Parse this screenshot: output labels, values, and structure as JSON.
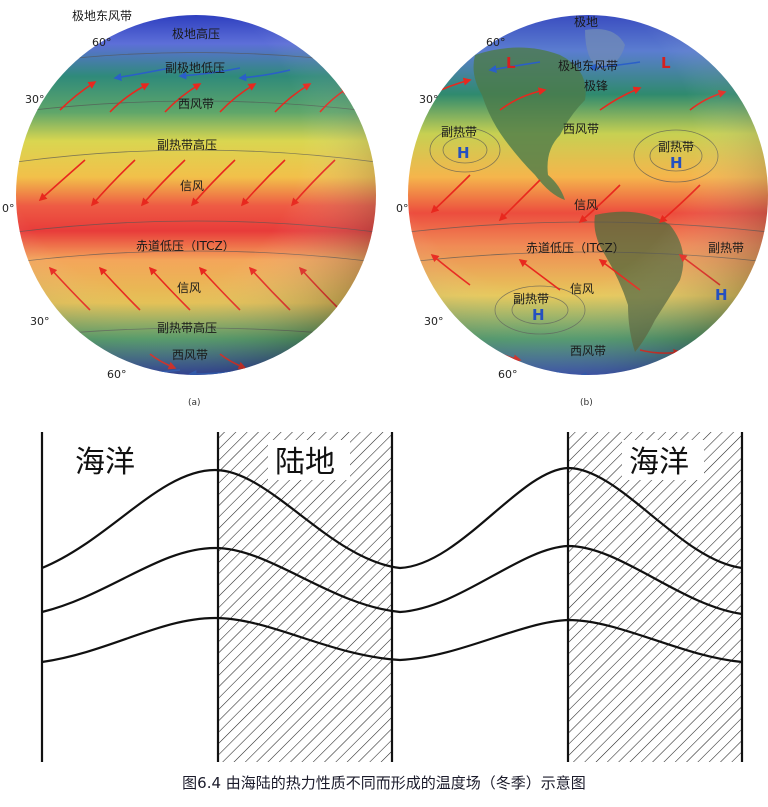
{
  "globe_a": {
    "panel_label": "(a)",
    "latitudes": {
      "lat60_n": "60°",
      "lat30_n": "30°",
      "lat0": "0°",
      "lat30_s": "30°",
      "lat60_s": "60°"
    },
    "zones": {
      "polar_easterlies": "极地东风带",
      "polar_high": "极地高压",
      "subpolar_low": "副极地低压",
      "westerlies_n": "西风带",
      "subtropical_high_n": "副热带高压",
      "trades_n": "信风",
      "itcz": "赤道低压（ITCZ）",
      "trades_s": "信风",
      "subtropical_high_s": "副热带高压",
      "westerlies_s": "西风带"
    }
  },
  "globe_b": {
    "panel_label": "(b)",
    "latitudes": {
      "lat60_n": "60°",
      "lat30_n": "30°",
      "lat0": "0°",
      "lat30_s": "30°",
      "lat60_s": "60°"
    },
    "zones": {
      "polar": "极地",
      "polar_easterlies": "极地东风带",
      "polar_front": "极锋",
      "subtropical_left": "副热带",
      "westerlies_n": "西风带",
      "subtropical_right": "副热带",
      "trades_n": "信风",
      "itcz": "赤道低压（ITCZ）",
      "subtropical_se": "副热带",
      "subtropical_sw": "副热带",
      "trades_s": "信风",
      "westerlies_s": "西风带"
    },
    "pressure_marks": {
      "low": "L",
      "high": "H"
    }
  },
  "bottom": {
    "ocean_left": "海洋",
    "land": "陆地",
    "ocean_right": "海洋"
  },
  "caption": "图6.4 由海陆的热力性质不同而形成的温度场（冬季）示意图",
  "colors": {
    "arrow_red": "#e8281e",
    "arrow_blue": "#2a5fc8",
    "pressure_high": "#2550c0",
    "pressure_low": "#d42020",
    "caption_text": "#1a1a2a"
  }
}
